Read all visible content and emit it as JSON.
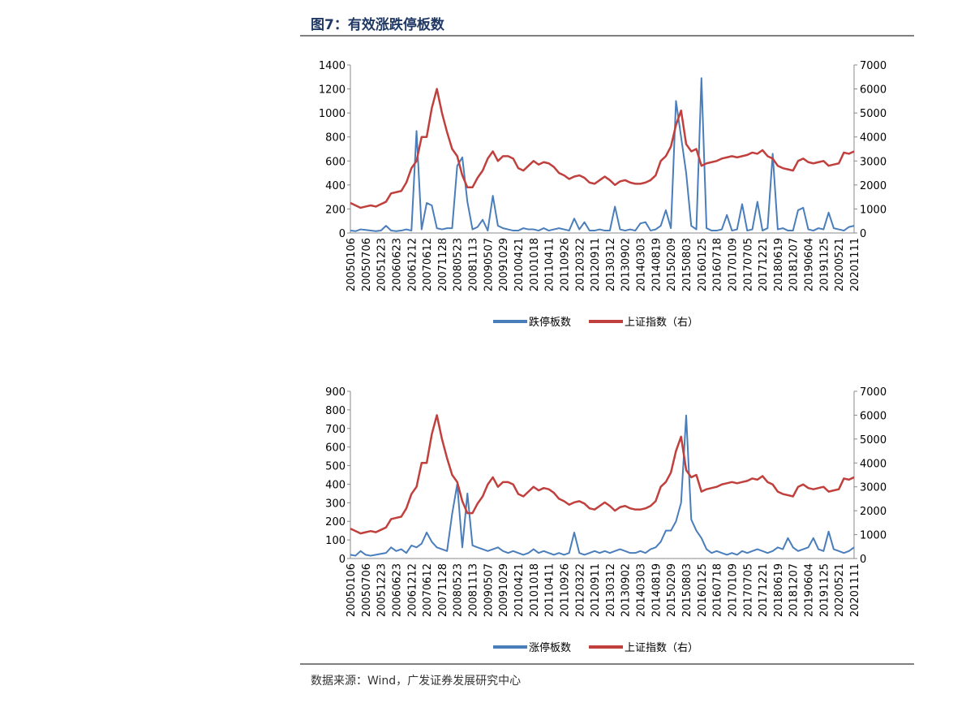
{
  "header": {
    "title": "图7：有效涨跌停板数"
  },
  "source": "数据来源：Wind，广发证券发展研究中心",
  "chart_data": [
    {
      "type": "line",
      "categories": [
        "20050106",
        null,
        null,
        "20050706",
        null,
        null,
        "20051223",
        null,
        null,
        "20060623",
        null,
        null,
        "20061212",
        null,
        null,
        "20070612",
        null,
        null,
        "20071128",
        null,
        null,
        "20080523",
        null,
        null,
        "20081113",
        null,
        null,
        "20090507",
        null,
        null,
        "20091029",
        null,
        null,
        "20100421",
        null,
        null,
        "20101018",
        null,
        null,
        "20110411",
        null,
        null,
        "20110926",
        null,
        null,
        "20120322",
        null,
        null,
        "20120911",
        null,
        null,
        "20130312",
        null,
        null,
        "20130902",
        null,
        null,
        "20140303",
        null,
        null,
        "20140819",
        null,
        null,
        "20150209",
        null,
        null,
        "20150803",
        null,
        null,
        "20160125",
        null,
        null,
        "20160718",
        null,
        null,
        "20170109",
        null,
        null,
        "20170705",
        null,
        null,
        "20171221",
        null,
        null,
        "20180619",
        null,
        null,
        "20181207",
        null,
        null,
        "20190604",
        null,
        null,
        "20191125",
        null,
        null,
        "20200521",
        null,
        null,
        "20201111"
      ],
      "series": [
        {
          "name": "跌停板数",
          "color": "#4a7ebb",
          "values": [
            20,
            15,
            30,
            25,
            20,
            15,
            20,
            60,
            20,
            15,
            20,
            30,
            20,
            850,
            30,
            250,
            230,
            40,
            30,
            40,
            40,
            560,
            630,
            260,
            30,
            50,
            110,
            20,
            310,
            60,
            40,
            30,
            20,
            20,
            40,
            30,
            30,
            20,
            40,
            20,
            30,
            40,
            30,
            20,
            120,
            30,
            90,
            20,
            20,
            30,
            20,
            20,
            220,
            30,
            20,
            30,
            20,
            80,
            90,
            20,
            30,
            60,
            190,
            40,
            1100,
            800,
            500,
            60,
            30,
            1290,
            40,
            20,
            20,
            30,
            150,
            20,
            30,
            240,
            20,
            30,
            260,
            20,
            40,
            660,
            30,
            40,
            20,
            20,
            190,
            210,
            30,
            20,
            40,
            30,
            170,
            40,
            30,
            20,
            50,
            60
          ]
        },
        {
          "name": "上证指数（右）",
          "color": "#c0403d",
          "axis": "y2",
          "values": [
            1250,
            1150,
            1050,
            1100,
            1150,
            1100,
            1200,
            1300,
            1650,
            1700,
            1750,
            2100,
            2700,
            3000,
            4000,
            4000,
            5200,
            6000,
            5000,
            4200,
            3500,
            3200,
            2400,
            1900,
            1900,
            2300,
            2600,
            3100,
            3400,
            3000,
            3200,
            3200,
            3100,
            2700,
            2600,
            2800,
            3000,
            2850,
            2950,
            2900,
            2750,
            2500,
            2400,
            2250,
            2350,
            2400,
            2300,
            2100,
            2050,
            2200,
            2350,
            2200,
            2000,
            2150,
            2200,
            2100,
            2050,
            2050,
            2100,
            2200,
            2400,
            3000,
            3200,
            3600,
            4500,
            5100,
            3700,
            3400,
            3500,
            2800,
            2900,
            2950,
            3000,
            3100,
            3150,
            3200,
            3150,
            3200,
            3250,
            3350,
            3300,
            3450,
            3200,
            3100,
            2800,
            2700,
            2650,
            2600,
            3000,
            3100,
            2950,
            2900,
            2950,
            3000,
            2800,
            2850,
            2900,
            3350,
            3300,
            3400
          ]
        }
      ],
      "ylim": [
        0,
        1400
      ],
      "yticks": [
        0,
        200,
        400,
        600,
        800,
        1000,
        1200,
        1400
      ],
      "y2lim": [
        0,
        7000
      ],
      "y2ticks": [
        0,
        1000,
        2000,
        3000,
        4000,
        5000,
        6000,
        7000
      ],
      "grid": false,
      "legend": "bottom"
    },
    {
      "type": "line",
      "categories": [
        "20050106",
        null,
        null,
        "20050706",
        null,
        null,
        "20051223",
        null,
        null,
        "20060623",
        null,
        null,
        "20061212",
        null,
        null,
        "20070612",
        null,
        null,
        "20071128",
        null,
        null,
        "20080523",
        null,
        null,
        "20081113",
        null,
        null,
        "20090507",
        null,
        null,
        "20091029",
        null,
        null,
        "20100421",
        null,
        null,
        "20101018",
        null,
        null,
        "20110411",
        null,
        null,
        "20110926",
        null,
        null,
        "20120322",
        null,
        null,
        "20120911",
        null,
        null,
        "20130312",
        null,
        null,
        "20130902",
        null,
        null,
        "20140303",
        null,
        null,
        "20140819",
        null,
        null,
        "20150209",
        null,
        null,
        "20150803",
        null,
        null,
        "20160125",
        null,
        null,
        "20160718",
        null,
        null,
        "20170109",
        null,
        null,
        "20170705",
        null,
        null,
        "20171221",
        null,
        null,
        "20180619",
        null,
        null,
        "20181207",
        null,
        null,
        "20190604",
        null,
        null,
        "20191125",
        null,
        null,
        "20200521",
        null,
        null,
        "20201111"
      ],
      "series": [
        {
          "name": "涨停板数",
          "color": "#4a7ebb",
          "values": [
            20,
            15,
            40,
            20,
            15,
            20,
            25,
            30,
            60,
            40,
            50,
            30,
            70,
            60,
            80,
            140,
            90,
            60,
            50,
            40,
            240,
            400,
            60,
            350,
            70,
            60,
            50,
            40,
            50,
            60,
            40,
            30,
            40,
            30,
            20,
            30,
            50,
            30,
            40,
            30,
            20,
            30,
            20,
            30,
            140,
            30,
            20,
            30,
            40,
            30,
            40,
            30,
            40,
            50,
            40,
            30,
            30,
            40,
            30,
            50,
            60,
            90,
            150,
            150,
            200,
            300,
            770,
            210,
            150,
            110,
            50,
            30,
            40,
            30,
            20,
            30,
            20,
            40,
            30,
            40,
            50,
            40,
            30,
            40,
            60,
            50,
            110,
            60,
            40,
            50,
            60,
            110,
            50,
            40,
            145,
            50,
            40,
            30,
            40,
            60
          ]
        },
        {
          "name": "上证指数（右）",
          "color": "#c0403d",
          "axis": "y2",
          "values": [
            1250,
            1150,
            1050,
            1100,
            1150,
            1100,
            1200,
            1300,
            1650,
            1700,
            1750,
            2100,
            2700,
            3000,
            4000,
            4000,
            5200,
            6000,
            5000,
            4200,
            3500,
            3200,
            2400,
            1900,
            1900,
            2300,
            2600,
            3100,
            3400,
            3000,
            3200,
            3200,
            3100,
            2700,
            2600,
            2800,
            3000,
            2850,
            2950,
            2900,
            2750,
            2500,
            2400,
            2250,
            2350,
            2400,
            2300,
            2100,
            2050,
            2200,
            2350,
            2200,
            2000,
            2150,
            2200,
            2100,
            2050,
            2050,
            2100,
            2200,
            2400,
            3000,
            3200,
            3600,
            4500,
            5100,
            3700,
            3400,
            3500,
            2800,
            2900,
            2950,
            3000,
            3100,
            3150,
            3200,
            3150,
            3200,
            3250,
            3350,
            3300,
            3450,
            3200,
            3100,
            2800,
            2700,
            2650,
            2600,
            3000,
            3100,
            2950,
            2900,
            2950,
            3000,
            2800,
            2850,
            2900,
            3350,
            3300,
            3400
          ]
        }
      ],
      "ylim": [
        0,
        900
      ],
      "yticks": [
        0,
        100,
        200,
        300,
        400,
        500,
        600,
        700,
        800,
        900
      ],
      "y2lim": [
        0,
        7000
      ],
      "y2ticks": [
        0,
        1000,
        2000,
        3000,
        4000,
        5000,
        6000,
        7000
      ],
      "grid": false,
      "legend": "bottom"
    }
  ]
}
